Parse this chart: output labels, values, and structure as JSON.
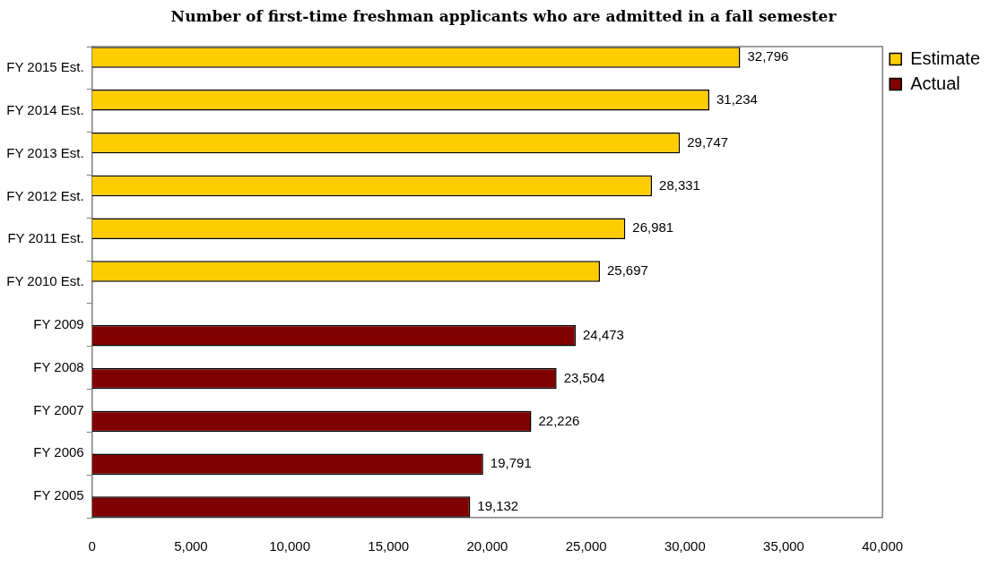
{
  "chart_data": {
    "type": "bar",
    "orientation": "horizontal",
    "title": "Number of first-time freshman applicants who are admitted in a fall semester",
    "categories": [
      "FY 2015 Est.",
      "FY 2014 Est.",
      "FY 2013 Est.",
      "FY 2012 Est.",
      "FY 2011 Est.",
      "FY 2010 Est.",
      "FY 2009",
      "FY 2008",
      "FY 2007",
      "FY 2006",
      "FY 2005"
    ],
    "series": [
      {
        "name": "Estimate",
        "color": "#ffcc00",
        "values": [
          32796,
          31234,
          29747,
          28331,
          26981,
          25697,
          null,
          null,
          null,
          null,
          null
        ],
        "value_labels": [
          "32,796",
          "31,234",
          "29,747",
          "28,331",
          "26,981",
          "25,697",
          null,
          null,
          null,
          null,
          null
        ]
      },
      {
        "name": "Actual",
        "color": "#800000",
        "values": [
          null,
          null,
          null,
          null,
          null,
          null,
          24473,
          23504,
          22226,
          19791,
          19132
        ],
        "value_labels": [
          null,
          null,
          null,
          null,
          null,
          null,
          "24,473",
          "23,504",
          "22,226",
          "19,791",
          "19,132"
        ]
      }
    ],
    "xlim": [
      0,
      40000
    ],
    "xticks": [
      0,
      {
        "value": 5000,
        "label": "5,000"
      },
      {
        "value": 10000,
        "label": "10,000"
      },
      {
        "value": 15000,
        "label": "15,000"
      },
      {
        "value": 20000,
        "label": "20,000"
      },
      {
        "value": 25000,
        "label": "25,000"
      },
      {
        "value": 30000,
        "label": "30,000"
      },
      {
        "value": 35000,
        "label": "35,000"
      },
      {
        "value": 40000,
        "label": "40,000"
      }
    ],
    "grid": false,
    "legend": "top right"
  }
}
